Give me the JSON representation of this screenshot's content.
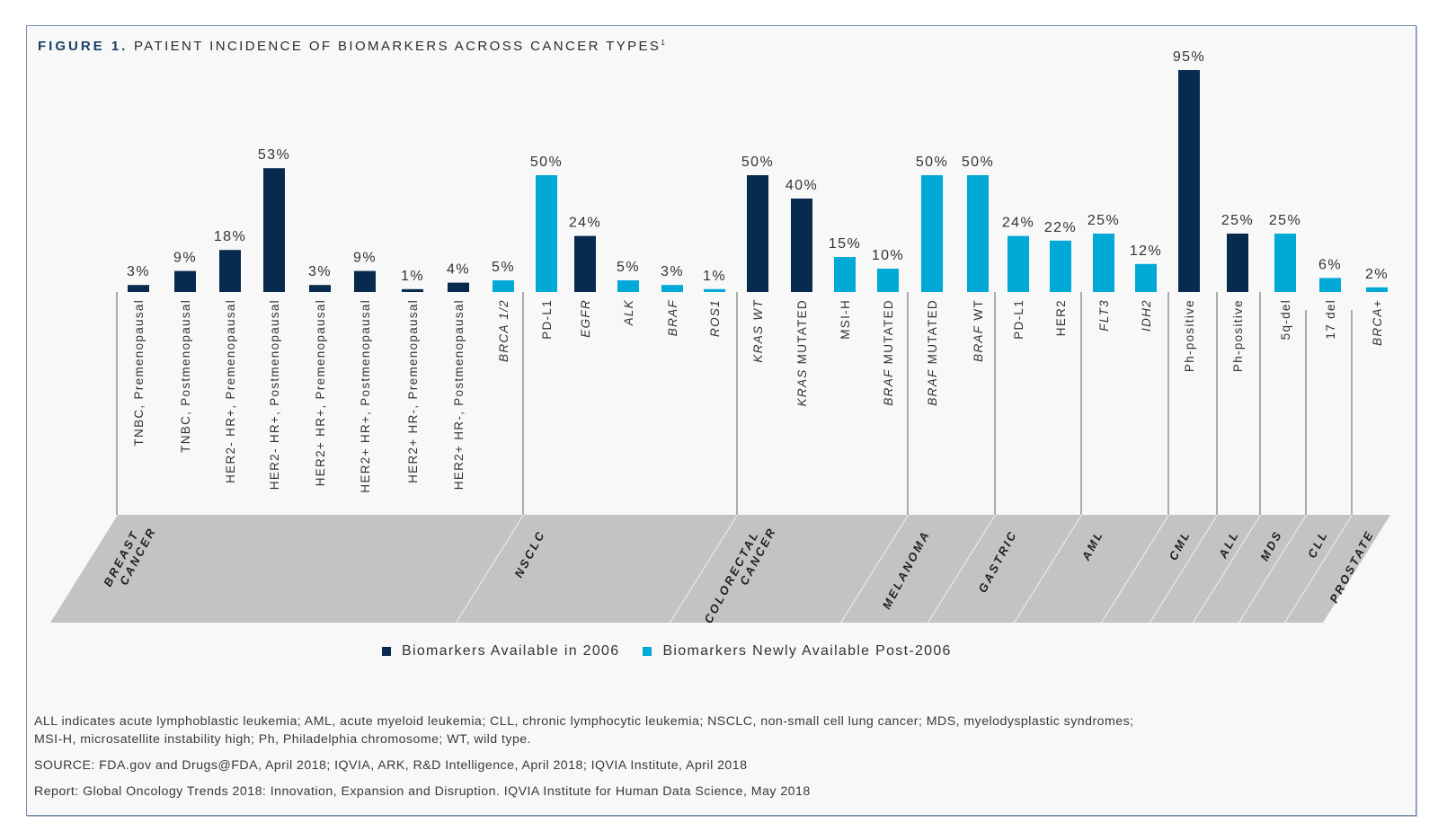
{
  "title": {
    "figure_label": "FIGURE 1.",
    "text": "PATIENT INCIDENCE OF BIOMARKERS ACROSS CANCER TYPES",
    "superscript": "1"
  },
  "colors": {
    "available_2006": "#062b4f",
    "post_2006": "#00a9d6",
    "group_band": "#c3c4c2",
    "separator": "#8a8a8a",
    "frame_border": "#7b8fb0"
  },
  "legend": {
    "items": [
      {
        "label": "Biomarkers Available in 2006",
        "series": "available_2006"
      },
      {
        "label": "Biomarkers Newly Available Post-2006",
        "series": "post_2006"
      }
    ],
    "placement": "bottom-center"
  },
  "chart_data": {
    "type": "bar",
    "title": "PATIENT INCIDENCE OF BIOMARKERS ACROSS CANCER TYPES",
    "xlabel": "",
    "ylabel": "",
    "ylim": [
      0,
      100
    ],
    "grid": false,
    "value_format": "percent",
    "series": [
      {
        "name": "Biomarkers Available in 2006",
        "key": "available_2006"
      },
      {
        "name": "Biomarkers Newly Available Post-2006",
        "key": "post_2006"
      }
    ],
    "groups": [
      {
        "name": "BREAST CANCER",
        "bars": [
          {
            "label": "TNBC, Premenopausal",
            "italic": false,
            "value": 3,
            "series": "available_2006"
          },
          {
            "label": "TNBC, Postmenopausal",
            "italic": false,
            "value": 9,
            "series": "available_2006"
          },
          {
            "label": "HER2- HR+, Premenopausal",
            "italic": false,
            "value": 18,
            "series": "available_2006"
          },
          {
            "label": "HER2- HR+, Postmenopausal",
            "italic": false,
            "value": 53,
            "series": "available_2006"
          },
          {
            "label": "HER2+ HR+, Premenopausal",
            "italic": false,
            "value": 3,
            "series": "available_2006"
          },
          {
            "label": "HER2+ HR+, Postmenopausal",
            "italic": false,
            "value": 9,
            "series": "available_2006"
          },
          {
            "label": "HER2+ HR-, Premenopausal",
            "italic": false,
            "value": 1,
            "series": "available_2006"
          },
          {
            "label": "HER2+ HR-, Postmenopausal",
            "italic": false,
            "value": 4,
            "series": "available_2006"
          },
          {
            "label": "BRCA 1/2",
            "italic": true,
            "value": 5,
            "series": "post_2006"
          }
        ]
      },
      {
        "name": "NSCLC",
        "bars": [
          {
            "label": "PD-L1",
            "italic": false,
            "value": 50,
            "series": "post_2006"
          },
          {
            "label": "EGFR",
            "italic": true,
            "value": 24,
            "series": "available_2006"
          },
          {
            "label": "ALK",
            "italic": true,
            "value": 5,
            "series": "post_2006"
          },
          {
            "label": "BRAF",
            "italic": true,
            "value": 3,
            "series": "post_2006"
          },
          {
            "label": "ROS1",
            "italic": true,
            "value": 1,
            "series": "post_2006"
          }
        ]
      },
      {
        "name": "COLORECTAL CANCER",
        "bars": [
          {
            "label": "KRAS WT",
            "italic": true,
            "value": 50,
            "series": "available_2006"
          },
          {
            "label": "KRAS MUTATED",
            "italic_prefix": "KRAS",
            "rest": " MUTATED",
            "value": 40,
            "series": "available_2006"
          },
          {
            "label": "MSI-H",
            "italic": false,
            "value": 15,
            "series": "post_2006"
          },
          {
            "label": "BRAF MUTATED",
            "italic_prefix": "BRAF",
            "rest": " MUTATED",
            "value": 10,
            "series": "post_2006"
          }
        ]
      },
      {
        "name": "MELANOMA",
        "bars": [
          {
            "label": "BRAF MUTATED",
            "italic_prefix": "BRAF",
            "rest": " MUTATED",
            "value": 50,
            "series": "post_2006"
          },
          {
            "label": "BRAF WT",
            "italic_prefix": "BRAF",
            "rest": " WT",
            "value": 50,
            "series": "post_2006"
          }
        ]
      },
      {
        "name": "GASTRIC",
        "bars": [
          {
            "label": "PD-L1",
            "italic": false,
            "value": 24,
            "series": "post_2006"
          },
          {
            "label": "HER2",
            "italic": false,
            "value": 22,
            "series": "post_2006"
          }
        ]
      },
      {
        "name": "AML",
        "bars": [
          {
            "label": "FLT3",
            "italic": true,
            "value": 25,
            "series": "post_2006"
          },
          {
            "label": "IDH2",
            "italic": true,
            "value": 12,
            "series": "post_2006"
          }
        ]
      },
      {
        "name": "CML",
        "bars": [
          {
            "label": "Ph-positive",
            "italic": false,
            "value": 95,
            "series": "available_2006"
          }
        ]
      },
      {
        "name": "ALL",
        "bars": [
          {
            "label": "Ph-positive",
            "italic": false,
            "value": 25,
            "series": "available_2006"
          }
        ]
      },
      {
        "name": "MDS",
        "bars": [
          {
            "label": "5q-del",
            "italic": false,
            "value": 25,
            "series": "post_2006"
          }
        ]
      },
      {
        "name": "CLL",
        "bars": [
          {
            "label": "17 del",
            "italic": false,
            "value": 6,
            "series": "post_2006"
          }
        ]
      },
      {
        "name": "PROSTATE",
        "bars": [
          {
            "label": "BRCA+",
            "italic": true,
            "value": 2,
            "series": "post_2006"
          }
        ]
      }
    ]
  },
  "footnotes": {
    "abbreviations_line1": "ALL indicates acute lymphoblastic leukemia; AML, acute myeloid leukemia; CLL, chronic lymphocytic leukemia; NSCLC, non-small cell lung cancer; MDS, myelodysplastic syndromes;",
    "abbreviations_line2": "MSI-H, microsatellite instability high; Ph, Philadelphia chromosome; WT, wild type.",
    "source": "SOURCE: FDA.gov and Drugs@FDA, April 2018; IQVIA, ARK, R&D Intelligence, April 2018; IQVIA Institute, April 2018",
    "report": "Report: Global Oncology Trends 2018: Innovation, Expansion and Disruption. IQVIA Institute for Human Data Science, May 2018"
  }
}
